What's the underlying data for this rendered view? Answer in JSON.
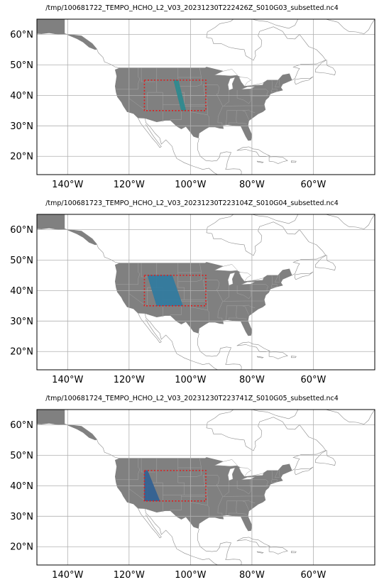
{
  "lon_range": [
    -150,
    -40
  ],
  "lat_range": [
    14,
    65
  ],
  "lon_ticks": [
    {
      "value": -140,
      "label": "140°W"
    },
    {
      "value": -120,
      "label": "120°W"
    },
    {
      "value": -100,
      "label": "100°W"
    },
    {
      "value": -80,
      "label": "80°W"
    },
    {
      "value": -60,
      "label": "60°W"
    }
  ],
  "lat_ticks": [
    {
      "value": 60,
      "label": "60°N"
    },
    {
      "value": 50,
      "label": "50°N"
    },
    {
      "value": 40,
      "label": "40°N"
    },
    {
      "value": 30,
      "label": "30°N"
    },
    {
      "value": 20,
      "label": "20°N"
    }
  ],
  "colors": {
    "land": "#808080",
    "coast": "#8a8a8a",
    "grid": "#b0b0b0",
    "bbox": "#e01b1b",
    "swath_1": "#2a8a8f",
    "swath_2": "#2e7aa0",
    "swath_3": "#2f5f94"
  },
  "bbox": {
    "lon": [
      -115,
      -95
    ],
    "lat": [
      35,
      45
    ]
  },
  "panels": [
    {
      "title": "/tmp/100681722_TEMPO_HCHO_L2_V03_20231230T222426Z_S010G03_subsetted.nc4",
      "swath": [
        [
          -105.5,
          45
        ],
        [
          -104,
          45
        ],
        [
          -101.5,
          35
        ],
        [
          -103,
          35
        ]
      ],
      "color_key": "swath_1"
    },
    {
      "title": "/tmp/100681723_TEMPO_HCHO_L2_V03_20231230T223104Z_S010G04_subsetted.nc4",
      "swath": [
        [
          -114,
          45
        ],
        [
          -106,
          45
        ],
        [
          -102.5,
          35
        ],
        [
          -111,
          35
        ]
      ],
      "color_key": "swath_2"
    },
    {
      "title": "/tmp/100681724_TEMPO_HCHO_L2_V03_20231230T223741Z_S010G05_subsetted.nc4",
      "swath": [
        [
          -115,
          45
        ],
        [
          -114,
          45
        ],
        [
          -110,
          35
        ],
        [
          -115,
          35
        ]
      ],
      "color_key": "swath_3"
    }
  ]
}
